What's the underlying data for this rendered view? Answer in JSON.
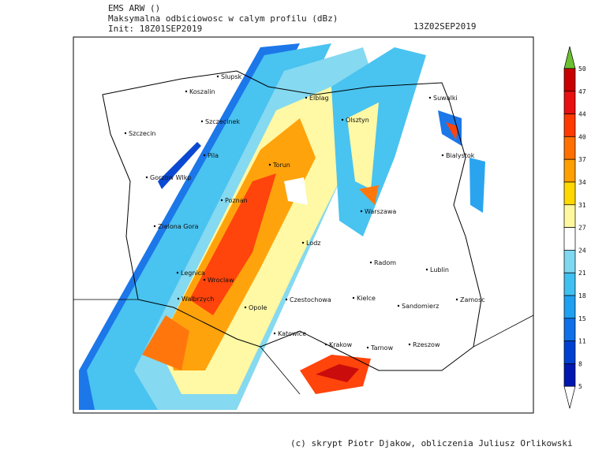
{
  "header": {
    "model": "EMS ARW ()",
    "field": "Maksymalna odbiciowosc w calym profilu (dBz)",
    "init": "Init: 18Z01SEP2019",
    "valid": "13Z02SEP2019"
  },
  "cities": [
    "Slupsk",
    "Koszalin",
    "Elblag",
    "Suwalki",
    "Szczecin",
    "Szczecinek",
    "Olsztyn",
    "Pila",
    "Torun",
    "Bialystok",
    "Gorzow Wlkp",
    "Poznan",
    "Warszawa",
    "Zielona Gora",
    "Lodz",
    "Radom",
    "Lublin",
    "Legnica",
    "Wroclaw",
    "Walbrzych",
    "Opole",
    "Czestochowa",
    "Kielce",
    "Sandomierz",
    "Zamosc",
    "Katowice",
    "Krakow",
    "Tarnow",
    "Rzeszow"
  ],
  "colorbar": {
    "levels": [
      50,
      47,
      44,
      40,
      37,
      34,
      31,
      27,
      24,
      21,
      18,
      15,
      11,
      8,
      5
    ],
    "colors": [
      "#c80000",
      "#e81010",
      "#ff3a00",
      "#ff7000",
      "#ff9f00",
      "#ffd800",
      "#fff8a0",
      "#ffffff",
      "#7fd8f0",
      "#40c0f0",
      "#20a0f0",
      "#1070e8",
      "#0040d0",
      "#0018b0"
    ],
    "over_color": "#6cc030",
    "under_color": "#ffffff"
  },
  "footer": "(c) skrypt Piotr Djakow, obliczenia Juliusz Orlikowski"
}
